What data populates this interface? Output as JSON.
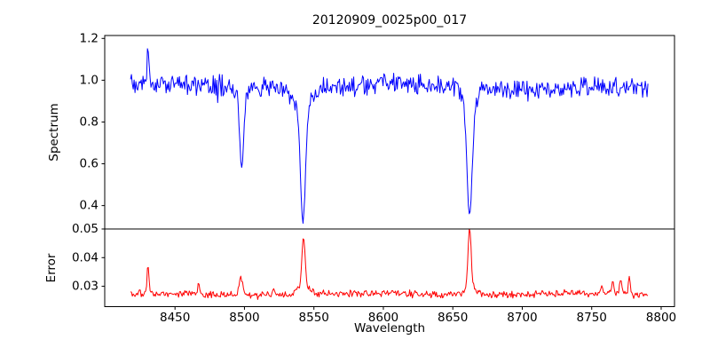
{
  "figure": {
    "title": "20120909_0025p00_017",
    "background_color": "#ffffff",
    "axes_color": "#000000"
  },
  "chart_data": [
    {
      "type": "line",
      "name": "spectrum",
      "title": "20120909_0025p00_017",
      "ylabel": "Spectrum",
      "line_color": "#0000ff",
      "grid": false,
      "legend": "none",
      "xlim": [
        8399.4,
        8809.6
      ],
      "ylim": [
        0.288,
        1.214
      ],
      "yticks": [
        "0.4",
        "0.6",
        "0.8",
        "1.0",
        "1.2"
      ],
      "x_start": 8418,
      "x_end": 8791,
      "x_step": 0.64,
      "continuum": {
        "base": 0.968,
        "wave1_amp": 0.01,
        "wave1_period": 170,
        "wave2_amp": 0.008,
        "wave2_period": 520
      },
      "noise_amp": 0.06,
      "noise_seed": 20120909,
      "emission_spike": {
        "center": 8430.5,
        "height": 0.2,
        "width": 0.9,
        "observed_peak": 1.17
      },
      "absorption_lines": [
        {
          "center": 8498.0,
          "core_depth": 0.36,
          "core_width": 2.0,
          "wing_depth": 0.05,
          "wing_width": 6,
          "observed_min": 0.58
        },
        {
          "center": 8542.1,
          "core_depth": 0.58,
          "core_width": 2.6,
          "wing_depth": 0.09,
          "wing_width": 9,
          "observed_min": 0.33
        },
        {
          "center": 8662.1,
          "core_depth": 0.56,
          "core_width": 2.6,
          "wing_depth": 0.08,
          "wing_width": 8,
          "observed_min": 0.35
        }
      ]
    },
    {
      "type": "line",
      "name": "error",
      "ylabel": "Error",
      "xlabel": "Wavelength",
      "line_color": "#ff0000",
      "grid": false,
      "legend": "none",
      "xlim": [
        8399.4,
        8809.6
      ],
      "ylim": [
        0.0229,
        0.05
      ],
      "yticks": [
        "0.03",
        "0.04",
        "0.05"
      ],
      "xticks": [
        "8450",
        "8500",
        "8550",
        "8600",
        "8650",
        "8700",
        "8750",
        "8800"
      ],
      "x_start": 8418,
      "x_end": 8791,
      "x_step": 0.64,
      "baseline": {
        "base": 0.0272,
        "wave_amp": 0.0004,
        "wave_period": 150
      },
      "noise_amp": 0.0015,
      "noise_seed": 25,
      "spikes": [
        {
          "center": 8430.5,
          "height": 0.01,
          "width": 0.9,
          "observed_peak": 0.0375
        },
        {
          "center": 8467.0,
          "height": 0.0035,
          "width": 1.0,
          "observed_peak": 0.031
        },
        {
          "center": 8497.5,
          "height": 0.006,
          "width": 1.8,
          "observed_peak": 0.0335
        },
        {
          "center": 8521.0,
          "height": 0.0028,
          "width": 1.2,
          "observed_peak": 0.0305
        },
        {
          "center": 8542.5,
          "height": 0.017,
          "width": 1.6,
          "wing_height": 0.003,
          "wing_width": 6,
          "observed_peak": 0.0445
        },
        {
          "center": 8662.1,
          "height": 0.0212,
          "width": 1.6,
          "wing_height": 0.0025,
          "wing_width": 6,
          "observed_peak": 0.0487
        },
        {
          "center": 8757.0,
          "height": 0.003,
          "width": 1.0,
          "observed_peak": 0.0305
        },
        {
          "center": 8765.0,
          "height": 0.0045,
          "width": 1.2,
          "observed_peak": 0.032
        },
        {
          "center": 8771.0,
          "height": 0.0055,
          "width": 1.0,
          "observed_peak": 0.033
        },
        {
          "center": 8777.0,
          "height": 0.006,
          "width": 0.9,
          "observed_peak": 0.0335
        }
      ]
    }
  ]
}
